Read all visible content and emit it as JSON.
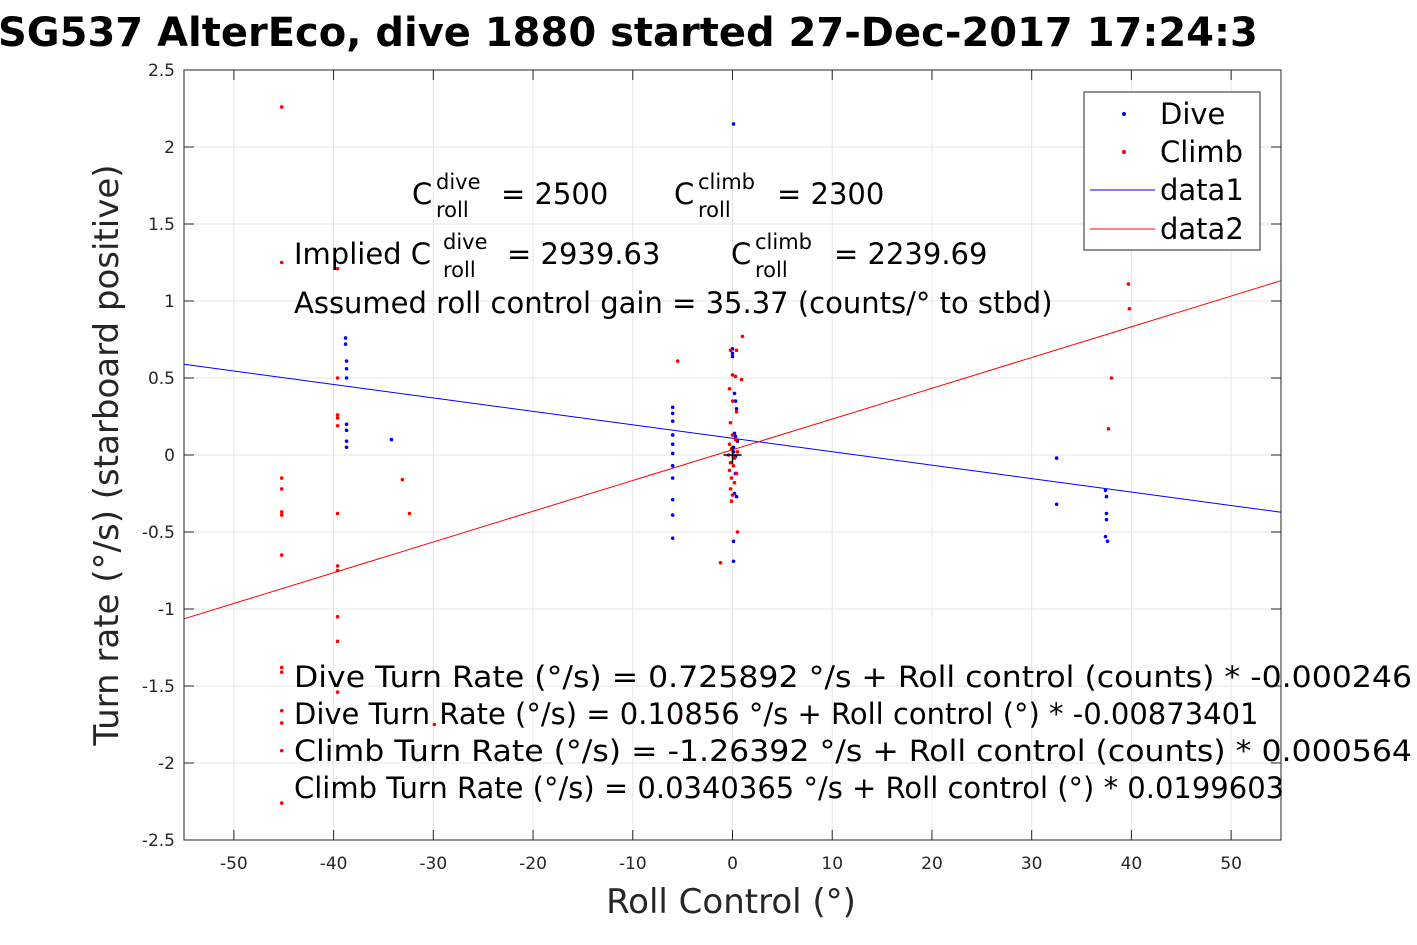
{
  "title": "SG537 AlterEco, dive 1880 started 27-Dec-2017 17:24:3",
  "chart_data": {
    "type": "scatter",
    "title": "SG537 AlterEco, dive 1880 started 27-Dec-2017 17:24:3",
    "xlabel": "Roll Control (°)",
    "ylabel": "Turn rate (°/s) (starboard positive)",
    "xlim": [
      -55,
      55
    ],
    "ylim": [
      -2.5,
      2.5
    ],
    "x_ticks": [
      "-50",
      "-40",
      "-30",
      "-20",
      "-10",
      "0",
      "10",
      "20",
      "30",
      "40",
      "50"
    ],
    "y_ticks": [
      "2.5",
      "2",
      "1.5",
      "1",
      "0.5",
      "0",
      "-0.5",
      "-1",
      "-1.5",
      "-2",
      "-2.5"
    ],
    "grid": true,
    "legend_position": "top-right",
    "legend": [
      {
        "label": "Dive",
        "kind": "marker",
        "color": "#0000ff"
      },
      {
        "label": "Climb",
        "kind": "marker",
        "color": "#ff0000"
      },
      {
        "label": "data1",
        "kind": "line",
        "color": "#0000ff"
      },
      {
        "label": "data2",
        "kind": "line",
        "color": "#ff0000"
      }
    ],
    "series": [
      {
        "name": "Dive",
        "color": "#0000ff",
        "points": [
          [
            -38.8,
            0.76
          ],
          [
            -38.8,
            0.72
          ],
          [
            -38.7,
            0.61
          ],
          [
            -38.7,
            0.56
          ],
          [
            -38.7,
            0.5
          ],
          [
            -38.7,
            0.2
          ],
          [
            -38.7,
            0.16
          ],
          [
            -38.7,
            0.09
          ],
          [
            -38.7,
            0.05
          ],
          [
            -34.2,
            0.1
          ],
          [
            -6.0,
            0.31
          ],
          [
            -6.0,
            0.27
          ],
          [
            -6.0,
            0.22
          ],
          [
            -6.0,
            0.13
          ],
          [
            -6.0,
            0.07
          ],
          [
            -6.0,
            0.01
          ],
          [
            -6.0,
            -0.07
          ],
          [
            -6.0,
            -0.15
          ],
          [
            -6.0,
            -0.29
          ],
          [
            -6.0,
            -0.39
          ],
          [
            -6.0,
            -0.54
          ],
          [
            0.1,
            2.15
          ],
          [
            0.0,
            0.69
          ],
          [
            0.0,
            0.66
          ],
          [
            0.0,
            0.64
          ],
          [
            0.2,
            0.4
          ],
          [
            0.3,
            0.35
          ],
          [
            0.4,
            0.3
          ],
          [
            0.2,
            0.14
          ],
          [
            0.3,
            0.12
          ],
          [
            0.5,
            0.09
          ],
          [
            0.1,
            0.05
          ],
          [
            0.1,
            0.02
          ],
          [
            0.3,
            -0.01
          ],
          [
            0.3,
            -0.12
          ],
          [
            0.2,
            -0.25
          ],
          [
            0.4,
            -0.27
          ],
          [
            0.1,
            -0.56
          ],
          [
            0.1,
            -0.69
          ],
          [
            32.5,
            -0.02
          ],
          [
            32.5,
            -0.32
          ],
          [
            37.4,
            -0.23
          ],
          [
            37.5,
            -0.27
          ],
          [
            37.5,
            -0.38
          ],
          [
            37.5,
            -0.42
          ],
          [
            37.4,
            -0.53
          ],
          [
            37.6,
            -0.56
          ]
        ]
      },
      {
        "name": "Climb",
        "color": "#ff0000",
        "points": [
          [
            -45.2,
            2.26
          ],
          [
            -45.2,
            1.25
          ],
          [
            -45.2,
            -0.15
          ],
          [
            -45.2,
            -0.22
          ],
          [
            -45.2,
            -0.37
          ],
          [
            -45.2,
            -0.39
          ],
          [
            -45.2,
            -0.65
          ],
          [
            -45.2,
            -1.38
          ],
          [
            -45.2,
            -1.41
          ],
          [
            -45.2,
            -1.66
          ],
          [
            -45.2,
            -1.74
          ],
          [
            -45.2,
            -1.92
          ],
          [
            -45.2,
            -2.26
          ],
          [
            -39.6,
            1.21
          ],
          [
            -39.6,
            0.5
          ],
          [
            -39.6,
            0.26
          ],
          [
            -39.6,
            0.24
          ],
          [
            -39.6,
            0.19
          ],
          [
            -39.6,
            -0.38
          ],
          [
            -39.6,
            -0.72
          ],
          [
            -39.6,
            -0.75
          ],
          [
            -39.6,
            -1.05
          ],
          [
            -39.6,
            -1.21
          ],
          [
            -39.6,
            -1.54
          ],
          [
            -33.1,
            -0.16
          ],
          [
            -32.4,
            -0.38
          ],
          [
            -29.9,
            -1.75
          ],
          [
            -5.5,
            0.61
          ],
          [
            -5.3,
            -1.72
          ],
          [
            -1.2,
            -0.7
          ],
          [
            -0.2,
            0.68
          ],
          [
            0.0,
            0.52
          ],
          [
            0.3,
            0.51
          ],
          [
            -0.3,
            0.43
          ],
          [
            0.0,
            0.35
          ],
          [
            0.4,
            0.28
          ],
          [
            -0.2,
            0.21
          ],
          [
            0.0,
            0.13
          ],
          [
            0.3,
            0.1
          ],
          [
            -0.3,
            0.07
          ],
          [
            -0.1,
            0.04
          ],
          [
            0.5,
            0.02
          ],
          [
            -0.4,
            0.0
          ],
          [
            0.2,
            -0.02
          ],
          [
            -0.2,
            -0.05
          ],
          [
            0.1,
            -0.07
          ],
          [
            -0.3,
            -0.1
          ],
          [
            0.4,
            -0.12
          ],
          [
            -0.1,
            -0.15
          ],
          [
            0.2,
            -0.18
          ],
          [
            -0.2,
            -0.22
          ],
          [
            0.0,
            -0.26
          ],
          [
            -0.1,
            -0.3
          ],
          [
            0.5,
            -0.5
          ],
          [
            1.0,
            0.77
          ],
          [
            0.9,
            0.49
          ],
          [
            0.4,
            0.68
          ],
          [
            37.7,
            0.17
          ],
          [
            38.0,
            0.5
          ],
          [
            39.7,
            1.11
          ],
          [
            39.8,
            0.95
          ]
        ]
      }
    ],
    "fit_lines": [
      {
        "name": "data1",
        "color": "#0000ff",
        "intercept": 0.10856,
        "slope": -0.00873401
      },
      {
        "name": "data2",
        "color": "#ff0000",
        "intercept": 0.0340365,
        "slope": 0.0199603
      }
    ],
    "origin_marker": "+"
  },
  "annotations": {
    "c_dive": {
      "base": "C",
      "sup": "dive",
      "sub": "roll",
      "value": "= 2500"
    },
    "c_climb": {
      "base": "C",
      "sup": "climb",
      "sub": "roll",
      "value": "= 2300"
    },
    "implied_dive": {
      "prefix": "Implied C",
      "sup": "dive",
      "sub": "roll",
      "value": "= 2939.63"
    },
    "implied_climb": {
      "base": "C",
      "sup": "climb",
      "sub": "roll",
      "value": "= 2239.69"
    },
    "gain": "Assumed roll control gain = 35.37 (counts/° to stbd)",
    "equations": [
      "Dive Turn Rate (°/s) = 0.725892 °/s + Roll control (counts) * -0.000246",
      "Dive Turn Rate (°/s) = 0.10856 °/s + Roll control (°) * -0.00873401",
      "Climb Turn Rate (°/s) = -1.26392 °/s + Roll control (counts) * 0.000564",
      "Climb Turn Rate (°/s) = 0.0340365 °/s + Roll control (°) * 0.0199603"
    ]
  }
}
